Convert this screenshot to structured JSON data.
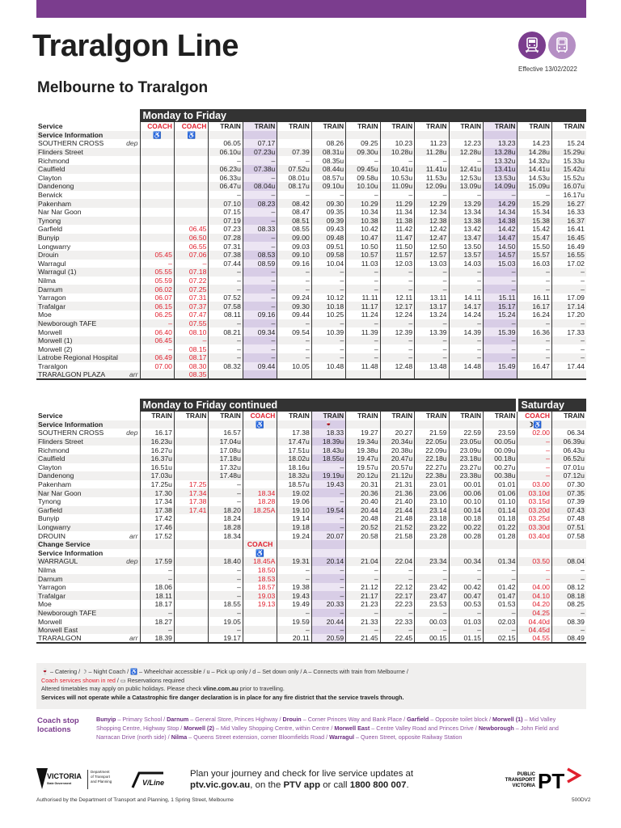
{
  "header": {
    "title": "Traralgon Line",
    "subtitle": "Melbourne to Traralgon",
    "effective": "Effective 13/02/2022",
    "brand_color": "#7b3d8e",
    "icons": [
      "train-icon",
      "coach-icon"
    ]
  },
  "labels": {
    "service": "Service",
    "service_info": "Service Information",
    "change_service": "Change Service",
    "dep": "dep",
    "arr": "arr"
  },
  "table1": {
    "title": "Monday to Friday",
    "stops": [
      [
        "SOUTHERN CROSS",
        "dep"
      ],
      [
        "Flinders Street",
        ""
      ],
      [
        "Richmond",
        ""
      ],
      [
        "Caulfield",
        ""
      ],
      [
        "Clayton",
        ""
      ],
      [
        "Dandenong",
        ""
      ],
      [
        "Berwick",
        ""
      ],
      [
        "Pakenham",
        ""
      ],
      [
        "Nar Nar Goon",
        ""
      ],
      [
        "Tynong",
        ""
      ],
      [
        "Garfield",
        ""
      ],
      [
        "Bunyip",
        ""
      ],
      [
        "Longwarry",
        ""
      ],
      [
        "Drouin",
        ""
      ],
      [
        "Warragul",
        ""
      ],
      [
        "Warragul (1)",
        ""
      ],
      [
        "Nilma",
        ""
      ],
      [
        "Darnum",
        ""
      ],
      [
        "Yarragon",
        ""
      ],
      [
        "Trafalgar",
        ""
      ],
      [
        "Moe",
        ""
      ],
      [
        "Newborough TAFE",
        ""
      ],
      [
        "Morwell",
        ""
      ],
      [
        "Morwell (1)",
        ""
      ],
      [
        "Morwell (2)",
        ""
      ],
      [
        "Latrobe Regional Hospital",
        ""
      ],
      [
        "Traralgon",
        ""
      ],
      [
        "TRARALGON PLAZA",
        "arr"
      ]
    ],
    "columns": [
      {
        "type": "COACH",
        "info": "♿",
        "red": true,
        "times": [
          "",
          "",
          "",
          "",
          "",
          "",
          "",
          "",
          "",
          "",
          "",
          "",
          "",
          "05.45",
          "–",
          "05.55",
          "05.59",
          "06.02",
          "06.07",
          "06.15",
          "06.25",
          "–",
          "06.40",
          "06.45",
          "–",
          "06.49",
          "07.00",
          ""
        ]
      },
      {
        "type": "COACH",
        "info": "♿",
        "red": true,
        "times": [
          "",
          "",
          "",
          "",
          "",
          "",
          "",
          "",
          "",
          "",
          "06.45",
          "06.50",
          "06.55",
          "07.06",
          "–",
          "07.18",
          "07.22",
          "07.25",
          "07.31",
          "07.37",
          "07.47",
          "07.55",
          "08.10",
          "–",
          "08.15",
          "08.17",
          "08.30",
          "08.35"
        ]
      },
      {
        "type": "TRAIN",
        "info": "",
        "times": [
          "06.05",
          "06.10u",
          "–",
          "06.23u",
          "06.33u",
          "06.47u",
          "–",
          "07.10",
          "07.15",
          "07.19",
          "07.23",
          "07.28",
          "07.31",
          "07.38",
          "07.44",
          "–",
          "–",
          "–",
          "07.52",
          "07.58",
          "08.11",
          "–",
          "08.21",
          "–",
          "–",
          "–",
          "08.32",
          ""
        ]
      },
      {
        "type": "TRAIN",
        "info": "",
        "reserved": true,
        "times": [
          "07.17",
          "07.23u",
          "–",
          "07.38u",
          "–",
          "08.04u",
          "–",
          "08.23",
          "–",
          "–",
          "08.33",
          "–",
          "–",
          "08.53",
          "08.59",
          "–",
          "–",
          "–",
          "–",
          "–",
          "09.16",
          "–",
          "09.34",
          "–",
          "–",
          "–",
          "09.44",
          ""
        ]
      },
      {
        "type": "TRAIN",
        "info": "",
        "times": [
          "",
          "07.39",
          "–",
          "07.52u",
          "08.01u",
          "08.17u",
          "–",
          "08.42",
          "08.47",
          "08.51",
          "08.55",
          "09.00",
          "09.03",
          "09.10",
          "09.16",
          "–",
          "–",
          "–",
          "09.24",
          "09.30",
          "09.44",
          "–",
          "09.54",
          "–",
          "–",
          "–",
          "10.05",
          ""
        ]
      },
      {
        "type": "TRAIN",
        "info": "",
        "times": [
          "08.26",
          "08.31u",
          "08.35u",
          "08.44u",
          "08.57u",
          "09.10u",
          "–",
          "09.30",
          "09.35",
          "09.39",
          "09.43",
          "09.48",
          "09.51",
          "09.58",
          "10.04",
          "–",
          "–",
          "–",
          "10.12",
          "10.18",
          "10.25",
          "–",
          "10.39",
          "–",
          "–",
          "–",
          "10.48",
          ""
        ]
      },
      {
        "type": "TRAIN",
        "info": "",
        "times": [
          "09.25",
          "09.30u",
          "–",
          "09.45u",
          "09.58u",
          "10.10u",
          "–",
          "10.29",
          "10.34",
          "10.38",
          "10.42",
          "10.47",
          "10.50",
          "10.57",
          "11.03",
          "–",
          "–",
          "–",
          "11.11",
          "11.17",
          "11.24",
          "–",
          "11.39",
          "–",
          "–",
          "–",
          "11.48",
          ""
        ]
      },
      {
        "type": "TRAIN",
        "info": "",
        "times": [
          "10.23",
          "10.28u",
          "–",
          "10.41u",
          "10.53u",
          "11.09u",
          "–",
          "11.29",
          "11.34",
          "11.38",
          "11.42",
          "11.47",
          "11.50",
          "11.57",
          "12.03",
          "–",
          "–",
          "–",
          "12.11",
          "12.17",
          "12.24",
          "–",
          "12.39",
          "–",
          "–",
          "–",
          "12.48",
          ""
        ]
      },
      {
        "type": "TRAIN",
        "info": "",
        "times": [
          "11.23",
          "11.28u",
          "–",
          "11.41u",
          "11.53u",
          "12.09u",
          "–",
          "12.29",
          "12.34",
          "12.38",
          "12.42",
          "12.47",
          "12.50",
          "12.57",
          "13.03",
          "–",
          "–",
          "–",
          "13.11",
          "13.17",
          "13.24",
          "–",
          "13.39",
          "–",
          "–",
          "–",
          "13.48",
          ""
        ]
      },
      {
        "type": "TRAIN",
        "info": "",
        "times": [
          "12.23",
          "12.28u",
          "–",
          "12.41u",
          "12.53u",
          "13.09u",
          "–",
          "13.29",
          "13.34",
          "13.38",
          "13.42",
          "13.47",
          "13.50",
          "13.57",
          "14.03",
          "–",
          "–",
          "–",
          "14.11",
          "14.17",
          "14.24",
          "–",
          "14.39",
          "–",
          "–",
          "–",
          "14.48",
          ""
        ]
      },
      {
        "type": "TRAIN",
        "info": "",
        "reserved": true,
        "times": [
          "13.23",
          "13.28u",
          "13.32u",
          "13.41u",
          "13.53u",
          "14.09u",
          "–",
          "14.29",
          "14.34",
          "14.38",
          "14.42",
          "14.47",
          "14.50",
          "14.57",
          "15.03",
          "–",
          "–",
          "–",
          "15.11",
          "15.17",
          "15.24",
          "–",
          "15.39",
          "–",
          "–",
          "–",
          "15.49",
          ""
        ]
      },
      {
        "type": "TRAIN",
        "info": "",
        "times": [
          "14.23",
          "14.28u",
          "14.32u",
          "14.41u",
          "14.53u",
          "15.09u",
          "–",
          "15.29",
          "15.34",
          "15.38",
          "15.42",
          "15.47",
          "15.50",
          "15.57",
          "16.03",
          "–",
          "–",
          "–",
          "16.11",
          "16.17",
          "16.24",
          "–",
          "16.36",
          "–",
          "–",
          "–",
          "16.47",
          ""
        ]
      },
      {
        "type": "TRAIN",
        "info": "",
        "times": [
          "15.24",
          "15.29u",
          "15.33u",
          "15.42u",
          "15.52u",
          "16.07u",
          "16.17u",
          "16.27",
          "16.33",
          "16.37",
          "16.41",
          "16.45",
          "16.49",
          "16.55",
          "17.02",
          "–",
          "–",
          "–",
          "17.09",
          "17.14",
          "17.20",
          "–",
          "17.33",
          "–",
          "–",
          "–",
          "17.44",
          ""
        ]
      }
    ]
  },
  "table2": {
    "title": "Monday to Friday continued",
    "title2": "Saturday",
    "stops": [
      [
        "SOUTHERN CROSS",
        "dep"
      ],
      [
        "Flinders Street",
        ""
      ],
      [
        "Richmond",
        ""
      ],
      [
        "Caulfield",
        ""
      ],
      [
        "Clayton",
        ""
      ],
      [
        "Dandenong",
        ""
      ],
      [
        "Pakenham",
        ""
      ],
      [
        "Nar Nar Goon",
        ""
      ],
      [
        "Tynong",
        ""
      ],
      [
        "Garfield",
        ""
      ],
      [
        "Bunyip",
        ""
      ],
      [
        "Longwarry",
        ""
      ],
      [
        "DROUIN",
        "arr"
      ],
      [
        "Change Service",
        "",
        "bold"
      ],
      [
        "Service Information",
        "",
        "bold"
      ],
      [
        "WARRAGUL",
        "dep"
      ],
      [
        "Nilma",
        ""
      ],
      [
        "Darnum",
        ""
      ],
      [
        "Yarragon",
        ""
      ],
      [
        "Trafalgar",
        ""
      ],
      [
        "Moe",
        ""
      ],
      [
        "Newborough TAFE",
        ""
      ],
      [
        "Morwell",
        ""
      ],
      [
        "Morwell East",
        ""
      ],
      [
        "TRARALGON",
        "arr"
      ]
    ],
    "columns": [
      {
        "type": "TRAIN",
        "info": "",
        "times": [
          "16.17",
          "16.23u",
          "16.27u",
          "16.37u",
          "16.51u",
          "17.03u",
          "17.25u",
          "17.30",
          "17.34",
          "17.38",
          "17.42",
          "17.46",
          "17.52",
          "",
          "",
          "17.59",
          "–",
          "–",
          "18.06",
          "18.11",
          "18.17",
          "–",
          "18.27",
          "–",
          "18.39"
        ]
      },
      {
        "type": "TRAIN",
        "info": "",
        "red": true,
        "times": [
          "",
          "",
          "",
          "",
          "",
          "",
          "17.25",
          "17.34",
          "17.38",
          "17.41",
          "",
          "",
          "",
          "",
          "",
          "",
          "",
          "",
          "",
          "",
          "",
          "",
          "",
          "",
          ""
        ]
      },
      {
        "type": "TRAIN",
        "info": "",
        "times": [
          "16.57",
          "17.04u",
          "17.08u",
          "17.18u",
          "17.32u",
          "17.48u",
          "–",
          "–",
          "–",
          "18.20",
          "18.24",
          "18.28",
          "18.34",
          "",
          "",
          "18.40",
          "–",
          "–",
          "–",
          "–",
          "18.55",
          "–",
          "19.05",
          "–",
          "19.17"
        ]
      },
      {
        "type": "COACH",
        "info": "♿",
        "red": true,
        "times": [
          "",
          "",
          "",
          "",
          "",
          "",
          "",
          "18.34",
          "18.28",
          "18.25A",
          "",
          "",
          "",
          "COACH",
          "♿",
          "18.45A",
          "18.50",
          "18.53",
          "18.57",
          "19.03",
          "19.13",
          "",
          "",
          "",
          ""
        ]
      },
      {
        "type": "TRAIN",
        "info": "",
        "times": [
          "17.38",
          "17.47u",
          "17.51u",
          "18.02u",
          "18.16u",
          "18.32u",
          "18.57u",
          "19.02",
          "19.06",
          "19.10",
          "19.14",
          "19.18",
          "19.24",
          "",
          "",
          "19.31",
          "–",
          "–",
          "19.38",
          "19.43",
          "19.49",
          "–",
          "19.59",
          "–",
          "20.11"
        ]
      },
      {
        "type": "TRAIN",
        "info": "🍷",
        "reserved": true,
        "times": [
          "18.33",
          "18.39u",
          "18.43u",
          "18.55u",
          "–",
          "19.19u",
          "19.43",
          "–",
          "–",
          "19.54",
          "–",
          "–",
          "20.07",
          "",
          "",
          "20.14",
          "–",
          "–",
          "–",
          "–",
          "20.33",
          "–",
          "20.44",
          "–",
          "20.59"
        ]
      },
      {
        "type": "TRAIN",
        "info": "",
        "times": [
          "19.27",
          "19.34u",
          "19.38u",
          "19.47u",
          "19.57u",
          "20.12u",
          "20.31",
          "20.36",
          "20.40",
          "20.44",
          "20.48",
          "20.52",
          "20.58",
          "",
          "",
          "21.04",
          "–",
          "–",
          "21.12",
          "21.17",
          "21.23",
          "–",
          "21.33",
          "–",
          "21.45"
        ]
      },
      {
        "type": "TRAIN",
        "info": "",
        "times": [
          "20.27",
          "20.34u",
          "20.38u",
          "20.47u",
          "20.57u",
          "21.12u",
          "21.31",
          "21.36",
          "21.40",
          "21.44",
          "21.48",
          "21.52",
          "21.58",
          "",
          "",
          "22.04",
          "–",
          "–",
          "22.12",
          "22.17",
          "22.23",
          "–",
          "22.33",
          "–",
          "22.45"
        ]
      },
      {
        "type": "TRAIN",
        "info": "",
        "times": [
          "21.59",
          "22.05u",
          "22.09u",
          "22.18u",
          "22.27u",
          "22.38u",
          "23.01",
          "23.06",
          "23.10",
          "23.14",
          "23.18",
          "23.22",
          "23.28",
          "",
          "",
          "23.34",
          "–",
          "–",
          "23.42",
          "23.47",
          "23.53",
          "–",
          "00.03",
          "–",
          "00.15"
        ]
      },
      {
        "type": "TRAIN",
        "info": "",
        "times": [
          "22.59",
          "23.05u",
          "23.09u",
          "23.18u",
          "23.27u",
          "23.38u",
          "00.01",
          "00.06",
          "00.10",
          "00.14",
          "00.18",
          "00.22",
          "00.28",
          "",
          "",
          "00.34",
          "–",
          "–",
          "00.42",
          "00.47",
          "00.53",
          "–",
          "01.03",
          "–",
          "01.15"
        ]
      },
      {
        "type": "TRAIN",
        "info": "",
        "times": [
          "23.59",
          "00.05u",
          "00.09u",
          "00.18u",
          "00.27u",
          "00.38u",
          "01.01",
          "01.06",
          "01.10",
          "01.14",
          "01.18",
          "01.22",
          "01.28",
          "",
          "",
          "01.34",
          "–",
          "–",
          "01.42",
          "01.47",
          "01.53",
          "–",
          "02.03",
          "–",
          "02.15"
        ]
      },
      {
        "type": "COACH",
        "info": "☽♿",
        "red": true,
        "times": [
          "02.00",
          "–",
          "–",
          "–",
          "–",
          "–",
          "03.00",
          "03.10d",
          "03.15d",
          "03.20d",
          "03.25d",
          "03.30d",
          "03.40d",
          "",
          "",
          "03.50",
          "–",
          "–",
          "04.00",
          "04.10",
          "04.20",
          "04.25",
          "04.40d",
          "04.45d",
          "04.55"
        ]
      },
      {
        "type": "TRAIN",
        "info": "",
        "times": [
          "06.34",
          "06.39u",
          "06.43u",
          "06.52u",
          "07.01u",
          "07.12u",
          "07.30",
          "07.35",
          "07.39",
          "07.43",
          "07.48",
          "07.51",
          "07.58",
          "",
          "",
          "08.04",
          "–",
          "–",
          "08.12",
          "08.18",
          "08.25",
          "–",
          "08.39",
          "–",
          "08.49"
        ]
      }
    ]
  },
  "notes": {
    "legend": "🍷 – Catering / ☽ – Night Coach / ♿ – Wheelchair accessible / u – Pick up only / d – Set down only / A – Connects with train from Melbourne /",
    "coach_red": "Coach services shown in red",
    "reservations": " / ▭ Reservations required",
    "altered_pre": "Altered timetables may apply on public holidays. Please check ",
    "altered_link": "vline.com.au",
    "altered_post": " prior to travelling.",
    "fire": "Services will not operate while a Catastrophic fire danger declaration is in place for any fire district that the service travels through."
  },
  "coach_stops": {
    "title": "Coach stop locations",
    "items": [
      [
        "Bunyip",
        "Primary School"
      ],
      [
        "Darnum",
        "General Store, Princes Highway"
      ],
      [
        "Drouin",
        "Corner Princes Way and Bank Place"
      ],
      [
        "Garfield",
        "Opposite toilet block"
      ],
      [
        "Morwell (1)",
        "Mid Valley Shopping Centre, Highway Stop"
      ],
      [
        "Morwell (2)",
        "Mid Valley Shopping Centre, within Centre"
      ],
      [
        "Morwell East",
        "Centre Valley Road and Princes Drive"
      ],
      [
        "Newborough",
        "John Field and Narracan Drive (north side)"
      ],
      [
        "Nilma",
        "Queens Street extension, corner Bloomfields Road"
      ],
      [
        "Warragul",
        "Queen Street, opposite Railway Station"
      ]
    ]
  },
  "footer": {
    "plan_line1": "Plan your journey and check for live service updates at",
    "plan_site": "ptv.vic.gov.au",
    "plan_mid": ", on the ",
    "plan_app": "PTV app",
    "plan_or": " or call ",
    "plan_phone": "1800 800 007",
    "plan_end": ".",
    "authorised": "Authorised by the Department of Transport and Planning, 1 Spring Street, Melbourne",
    "code": "500DV2",
    "logos": {
      "victoria": "VICTORIA State Government",
      "dept": "Department of Transport and Planning",
      "vline": "V/Line",
      "ptv": "PUBLIC TRANSPORT VICTORIA PT"
    }
  }
}
